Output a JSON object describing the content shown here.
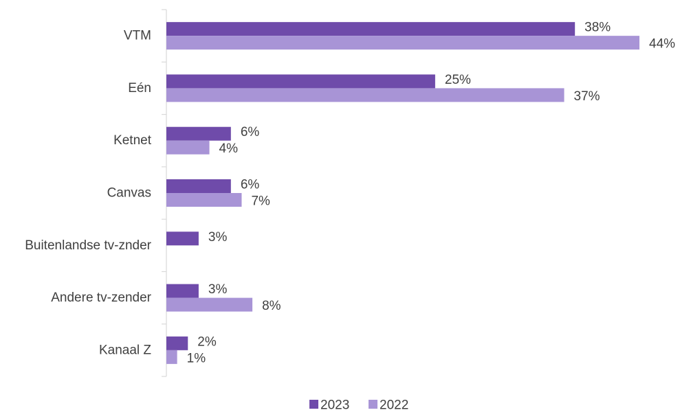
{
  "chart_data": {
    "type": "bar",
    "orientation": "horizontal",
    "categories": [
      "VTM",
      "Eén",
      "Ketnet",
      "Canvas",
      "Buitenlandse tv-znder",
      "Andere tv-zender",
      "Kanaal Z"
    ],
    "series": [
      {
        "name": "2023",
        "color": "#6f4baa",
        "values": [
          38,
          25,
          6,
          6,
          3,
          3,
          2
        ],
        "labels": [
          "38%",
          "25%",
          "6%",
          "6%",
          "3%",
          "3%",
          "2%"
        ]
      },
      {
        "name": "2022",
        "color": "#a894d6",
        "values": [
          44,
          37,
          4,
          7,
          null,
          8,
          1
        ],
        "labels": [
          "44%",
          "37%",
          "4%",
          "7%",
          "",
          "8%",
          "1%"
        ]
      }
    ],
    "xlim": [
      0,
      44
    ],
    "grid": false,
    "legend_position": "bottom"
  }
}
